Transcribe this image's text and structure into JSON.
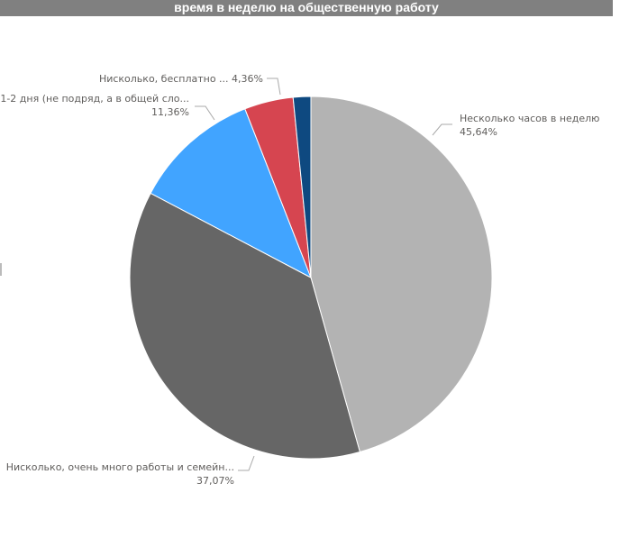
{
  "chart_data": {
    "type": "pie",
    "title": "время в неделю на общественную работу",
    "slices": [
      {
        "label": "Несколько часов в неделю",
        "value": 45.64,
        "value_label": "45,64%",
        "color": "#b3b3b3"
      },
      {
        "label": "Нисколько, очень много работы и семейн...",
        "value": 37.07,
        "value_label": "37,07%",
        "color": "#666666"
      },
      {
        "label": "1-2 дня (не подряд, а в общей сло...",
        "value": 11.36,
        "value_label": "11,36%",
        "color": "#41a4ff"
      },
      {
        "label": "Нисколько, бесплатно ...",
        "value": 4.36,
        "value_label": "4,36%",
        "color": "#d64550"
      },
      {
        "value": 1.57,
        "color": "#0e4980"
      }
    ],
    "start_angle": "top",
    "direction": "clockwise",
    "legend": "none"
  }
}
